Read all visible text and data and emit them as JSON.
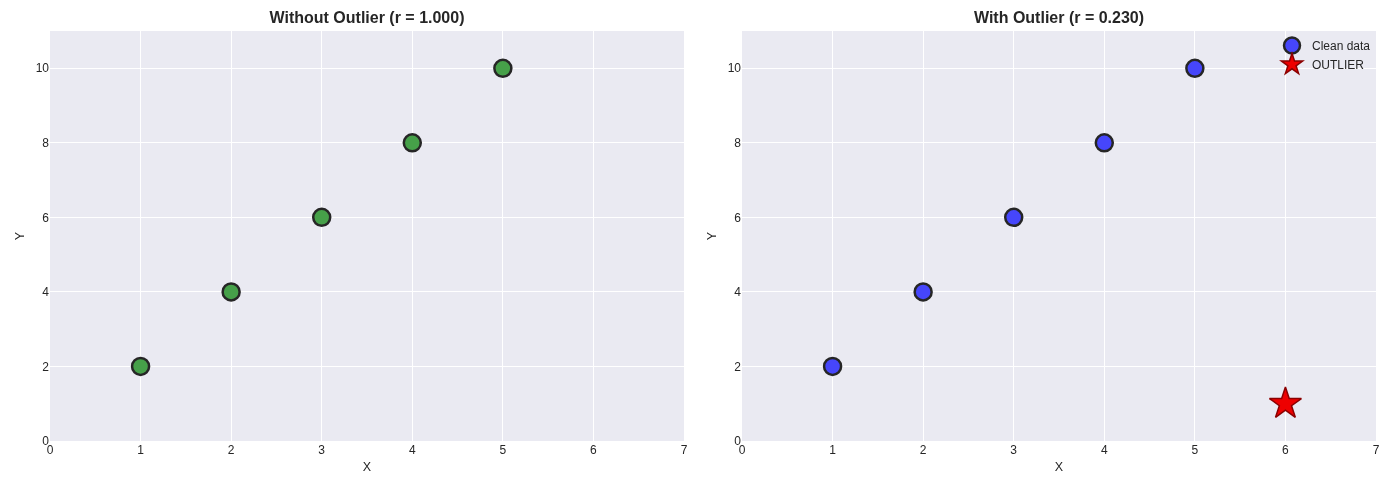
{
  "chart_data": [
    {
      "type": "scatter",
      "title": "Without Outlier (r = 1.000)",
      "xlabel": "X",
      "ylabel": "Y",
      "x": [
        1,
        2,
        3,
        4,
        5
      ],
      "values": [
        2,
        4,
        6,
        8,
        10
      ],
      "color": "#46a049",
      "marker": "circle",
      "xlim": [
        0,
        7
      ],
      "ylim": [
        0,
        11
      ],
      "xticks": [
        0,
        1,
        2,
        3,
        4,
        5,
        6,
        7
      ],
      "yticks": [
        0,
        2,
        4,
        6,
        8,
        10
      ],
      "grid": true
    },
    {
      "type": "scatter",
      "title": "With Outlier (r = 0.230)",
      "xlabel": "X",
      "ylabel": "Y",
      "series": [
        {
          "name": "Clean data",
          "color": "#4646fb",
          "marker": "circle",
          "x": [
            1,
            2,
            3,
            4,
            5
          ],
          "values": [
            2,
            4,
            6,
            8,
            10
          ]
        },
        {
          "name": "OUTLIER",
          "color": "#ee0000",
          "marker": "star",
          "x": [
            6
          ],
          "values": [
            1
          ]
        }
      ],
      "xlim": [
        0,
        7
      ],
      "ylim": [
        0,
        11
      ],
      "xticks": [
        0,
        1,
        2,
        3,
        4,
        5,
        6,
        7
      ],
      "yticks": [
        0,
        2,
        4,
        6,
        8,
        10
      ],
      "grid": true,
      "legend": "top right"
    }
  ]
}
